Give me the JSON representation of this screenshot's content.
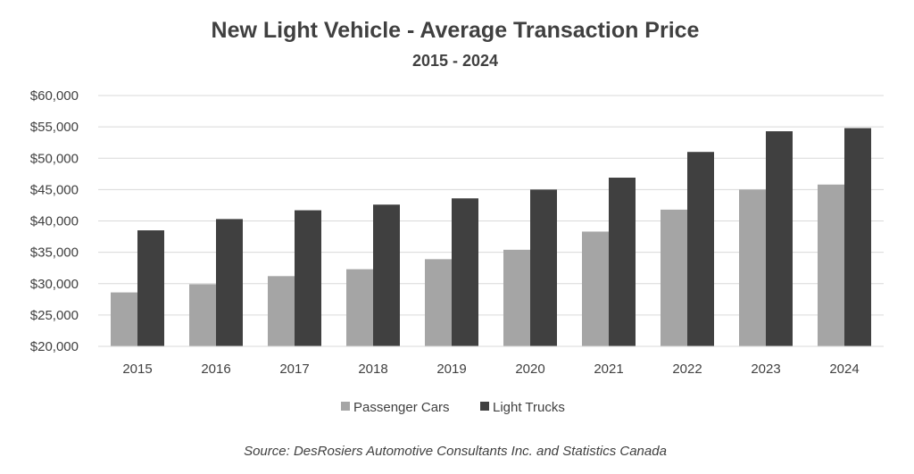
{
  "chart_data": {
    "type": "bar",
    "title": "New Light Vehicle - Average Transaction Price",
    "subtitle": "2015 - 2024",
    "categories": [
      "2015",
      "2016",
      "2017",
      "2018",
      "2019",
      "2020",
      "2021",
      "2022",
      "2023",
      "2024"
    ],
    "series": [
      {
        "name": "Passenger Cars",
        "color": "#a5a5a5",
        "values": [
          28600,
          29900,
          31200,
          32300,
          33900,
          35400,
          38300,
          41800,
          45000,
          45800
        ]
      },
      {
        "name": "Light Trucks",
        "color": "#404040",
        "values": [
          38500,
          40300,
          41700,
          42600,
          43600,
          45000,
          46900,
          51000,
          54300,
          54800
        ]
      }
    ],
    "ylim": [
      20000,
      60000
    ],
    "yticks": [
      20000,
      25000,
      30000,
      35000,
      40000,
      45000,
      50000,
      55000,
      60000
    ],
    "ytick_labels": [
      "$20,000",
      "$25,000",
      "$30,000",
      "$35,000",
      "$40,000",
      "$45,000",
      "$50,000",
      "$55,000",
      "$60,000"
    ],
    "xlabel": "",
    "ylabel": "",
    "grid": true,
    "legend_position": "bottom",
    "source": "Source: DesRosiers Automotive Consultants Inc. and Statistics Canada"
  }
}
